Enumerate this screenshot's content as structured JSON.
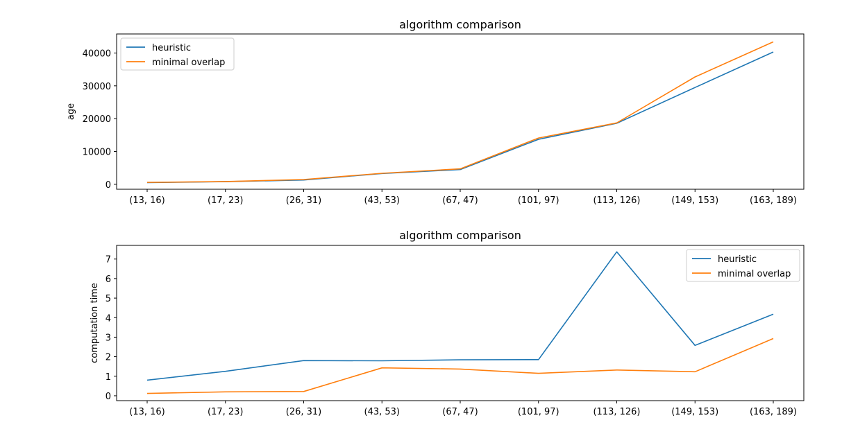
{
  "chart_data": [
    {
      "type": "line",
      "title": "algorithm comparison",
      "xlabel": "",
      "ylabel": "age",
      "categories": [
        "(13, 16)",
        "(17, 23)",
        "(26, 31)",
        "(43, 53)",
        "(67, 47)",
        "(101, 97)",
        "(113, 126)",
        "(149, 153)",
        "(163, 189)"
      ],
      "ylim": [
        -1500,
        45800
      ],
      "yticks": [
        0,
        10000,
        20000,
        30000,
        40000
      ],
      "legend_position": "top-left",
      "grid": false,
      "series": [
        {
          "name": "heuristic",
          "color": "#1f77b4",
          "values": [
            500,
            800,
            1300,
            3300,
            4500,
            13700,
            18600,
            29500,
            40300
          ]
        },
        {
          "name": "minimal overlap",
          "color": "#ff7f0e",
          "values": [
            600,
            850,
            1450,
            3350,
            4700,
            14100,
            18700,
            32700,
            43400
          ]
        }
      ]
    },
    {
      "type": "line",
      "title": "algorithm comparison",
      "xlabel": "",
      "ylabel": "computation time",
      "categories": [
        "(13, 16)",
        "(17, 23)",
        "(26, 31)",
        "(43, 53)",
        "(67, 47)",
        "(101, 97)",
        "(113, 126)",
        "(149, 153)",
        "(163, 189)"
      ],
      "ylim": [
        -0.25,
        7.7
      ],
      "yticks": [
        0,
        1,
        2,
        3,
        4,
        5,
        6,
        7
      ],
      "legend_position": "top-right",
      "grid": false,
      "series": [
        {
          "name": "heuristic",
          "color": "#1f77b4",
          "values": [
            0.8,
            1.25,
            1.8,
            1.79,
            1.84,
            1.85,
            7.37,
            2.58,
            4.18
          ]
        },
        {
          "name": "minimal overlap",
          "color": "#ff7f0e",
          "values": [
            0.12,
            0.2,
            0.22,
            1.43,
            1.37,
            1.15,
            1.32,
            1.23,
            2.93
          ]
        }
      ]
    }
  ]
}
